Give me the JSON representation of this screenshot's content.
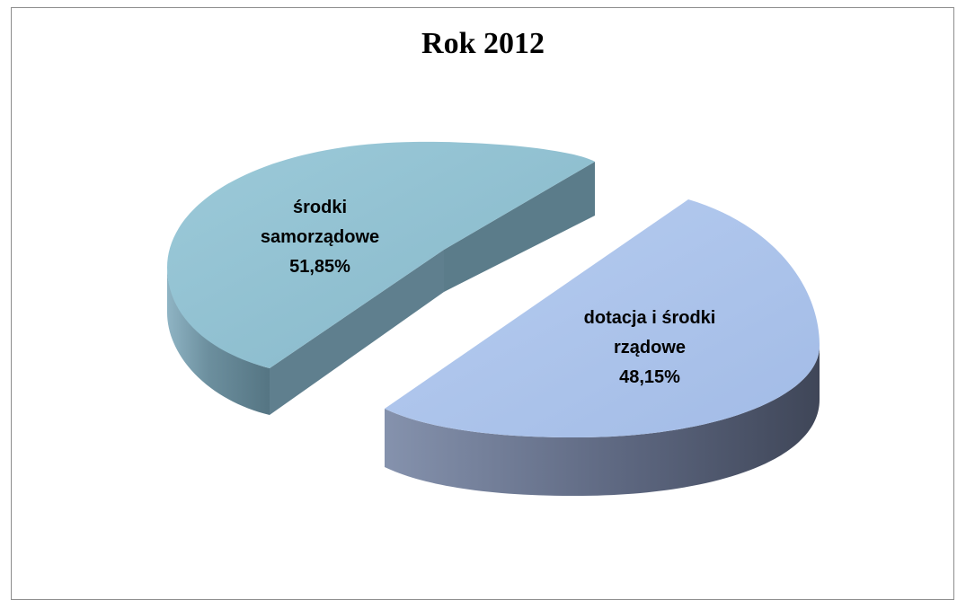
{
  "chart_data": {
    "type": "pie",
    "title": "Rok 2012",
    "slices": [
      {
        "label_lines": [
          "środki",
          "samorządowe"
        ],
        "value": 51.85,
        "value_text": "51,85%",
        "top_color": "#8fbfd2",
        "side_color": "#5f7f8e"
      },
      {
        "label_lines": [
          "dotacja i środki",
          "rządowe"
        ],
        "value": 48.15,
        "value_text": "48,15%",
        "top_color": "#a9c1e8",
        "side_color": "#4f5a70"
      }
    ],
    "style": "3d-exploded"
  }
}
